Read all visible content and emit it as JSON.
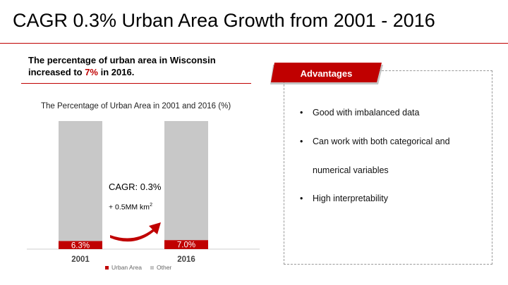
{
  "slide": {
    "title": "CAGR 0.3% Urban Area Growth from 2001 - 2016",
    "headline_prefix": "The percentage of urban area in Wisconsin increased to ",
    "headline_highlight": "7%",
    "headline_suffix": " in 2016."
  },
  "annotation": {
    "cagr": "CAGR: 0.3%",
    "growth": "+ 0.5MM km",
    "growth_sup": "2"
  },
  "advantages": {
    "heading": "Advantages",
    "bullet_glyph": "•",
    "items": [
      "Good with imbalanced data",
      "Can work with both categorical and",
      "numerical variables",
      "High interpretability"
    ]
  },
  "colors": {
    "accent": "#c00000",
    "other": "#c8c8c8"
  },
  "chart_data": {
    "type": "bar",
    "stacked": true,
    "title": "The Percentage of Urban Area in 2001 and 2016 (%)",
    "categories": [
      "2001",
      "2016"
    ],
    "series": [
      {
        "name": "Urban Area",
        "values": [
          6.3,
          7.0
        ],
        "labels": [
          "6.3%",
          "7.0%"
        ],
        "color": "#c00000"
      },
      {
        "name": "Other",
        "values": [
          93.7,
          93.0
        ],
        "color": "#c8c8c8"
      }
    ],
    "ylim": [
      0,
      100
    ],
    "legend_position": "bottom",
    "grid": false
  }
}
